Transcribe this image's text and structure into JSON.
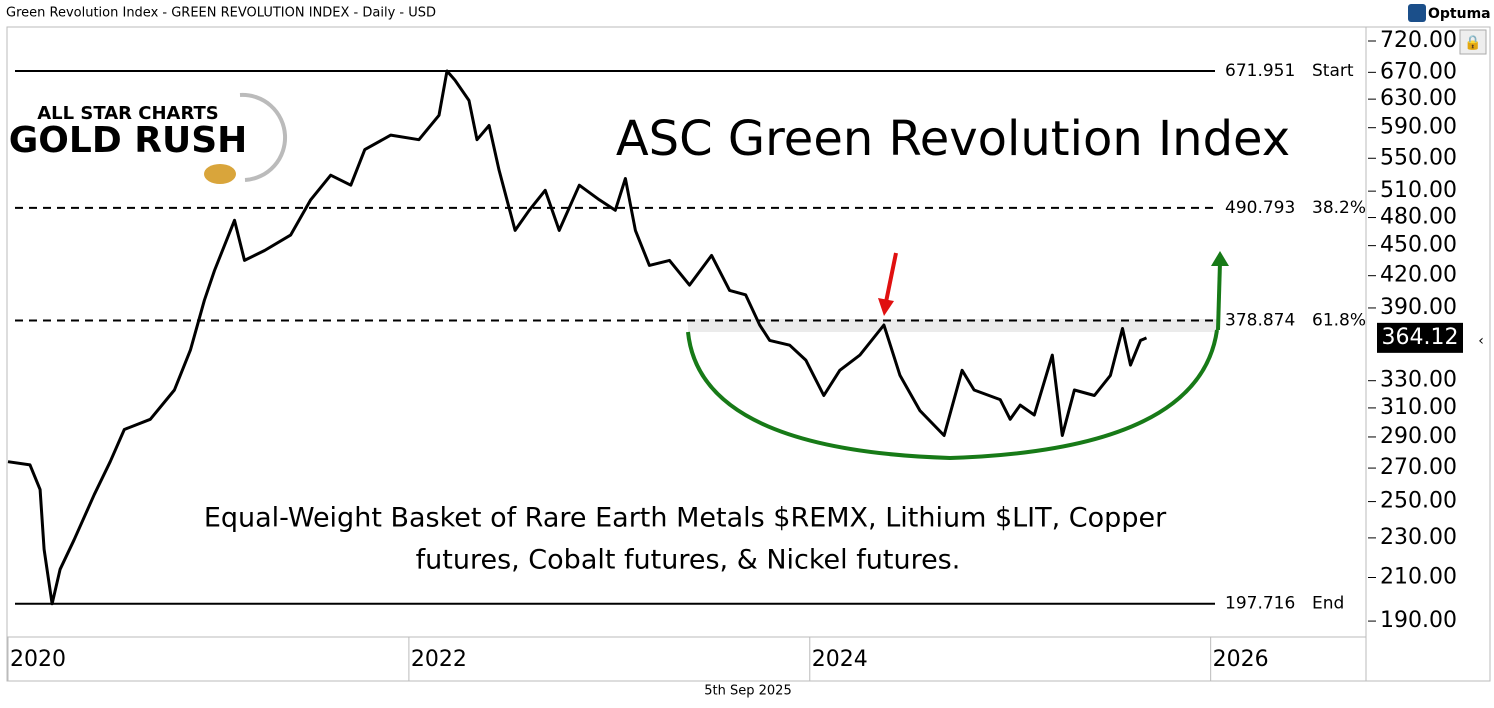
{
  "header": {
    "title": "Green Revolution Index - GREEN REVOLUTION INDEX - Daily - USD",
    "brand": "Optuma",
    "footer": "5th Sep 2025"
  },
  "logo": {
    "line1": "ALL STAR CHARTS",
    "line2": "GOLD RUSH"
  },
  "chart_data": {
    "type": "line",
    "title": "ASC Green Revolution Index",
    "caption": [
      "Equal-Weight Basket of Rare Earth Metals $REMX, Lithium $LIT, Copper",
      "futures, Cobalt futures, & Nickel futures."
    ],
    "color": "#000000",
    "log_scale": true,
    "grid": false,
    "x": [
      2020.0,
      2020.11,
      2020.16,
      2020.18,
      2020.22,
      2020.26,
      2020.33,
      2020.43,
      2020.51,
      2020.58,
      2020.71,
      2020.83,
      2020.91,
      2020.98,
      2021.03,
      2021.13,
      2021.18,
      2021.28,
      2021.41,
      2021.51,
      2021.61,
      2021.71,
      2021.78,
      2021.91,
      2022.05,
      2022.15,
      2022.19,
      2022.23,
      2022.3,
      2022.34,
      2022.4,
      2022.45,
      2022.53,
      2022.6,
      2022.68,
      2022.75,
      2022.85,
      2022.95,
      2023.03,
      2023.08,
      2023.13,
      2023.2,
      2023.3,
      2023.4,
      2023.51,
      2023.6,
      2023.68,
      2023.75,
      2023.8,
      2023.9,
      2023.98,
      2024.07,
      2024.15,
      2024.25,
      2024.37,
      2024.45,
      2024.55,
      2024.67,
      2024.76,
      2024.82,
      2024.95,
      2025.0,
      2025.05,
      2025.12,
      2025.21,
      2025.26,
      2025.32,
      2025.42,
      2025.5,
      2025.56,
      2025.6,
      2025.65,
      2025.68
    ],
    "values": [
      274,
      272,
      257,
      224,
      197.7,
      214,
      229,
      254,
      274,
      295,
      302,
      323,
      354,
      397,
      425,
      477,
      435,
      445,
      461,
      500,
      529,
      517,
      561,
      580,
      574,
      607,
      672,
      658,
      628,
      574,
      593,
      535,
      466,
      488,
      511,
      466,
      517,
      500,
      488,
      525,
      466,
      430,
      435,
      411,
      440,
      406,
      402,
      375,
      362,
      358,
      346,
      319,
      338,
      350,
      375,
      334,
      308,
      291,
      338,
      323,
      316,
      302,
      312,
      305,
      350,
      291,
      323,
      319,
      334,
      372,
      342,
      362,
      364.12
    ],
    "last_value": 364.12,
    "xlim": [
      2020,
      2026.77
    ],
    "xticks": [
      2020,
      2022,
      2024,
      2026
    ],
    "ylim": [
      183.6,
      741.8
    ],
    "yticks": [
      {
        "value": 190,
        "label": "190.00"
      },
      {
        "value": 210,
        "label": "210.00"
      },
      {
        "value": 230,
        "label": "230.00"
      },
      {
        "value": 250,
        "label": "250.00"
      },
      {
        "value": 270,
        "label": "270.00"
      },
      {
        "value": 290,
        "label": "290.00"
      },
      {
        "value": 310,
        "label": "310.00"
      },
      {
        "value": 330,
        "label": "330.00"
      },
      {
        "value": 390,
        "label": "390.00"
      },
      {
        "value": 420,
        "label": "420.00"
      },
      {
        "value": 450,
        "label": "450.00"
      },
      {
        "value": 480,
        "label": "480.00"
      },
      {
        "value": 510,
        "label": "510.00"
      },
      {
        "value": 550,
        "label": "550.00"
      },
      {
        "value": 590,
        "label": "590.00"
      },
      {
        "value": 630,
        "label": "630.00"
      },
      {
        "value": 670,
        "label": "670.00"
      },
      {
        "value": 720,
        "label": "720.00"
      }
    ],
    "levels": [
      {
        "value": 671.951,
        "name": "Start",
        "style": "solid"
      },
      {
        "value": 490.793,
        "name": "38.2%",
        "style": "dashed"
      },
      {
        "value": 378.874,
        "name": "61.8%",
        "style": "dashed"
      },
      {
        "value": 197.716,
        "name": "End",
        "style": "solid"
      }
    ]
  }
}
